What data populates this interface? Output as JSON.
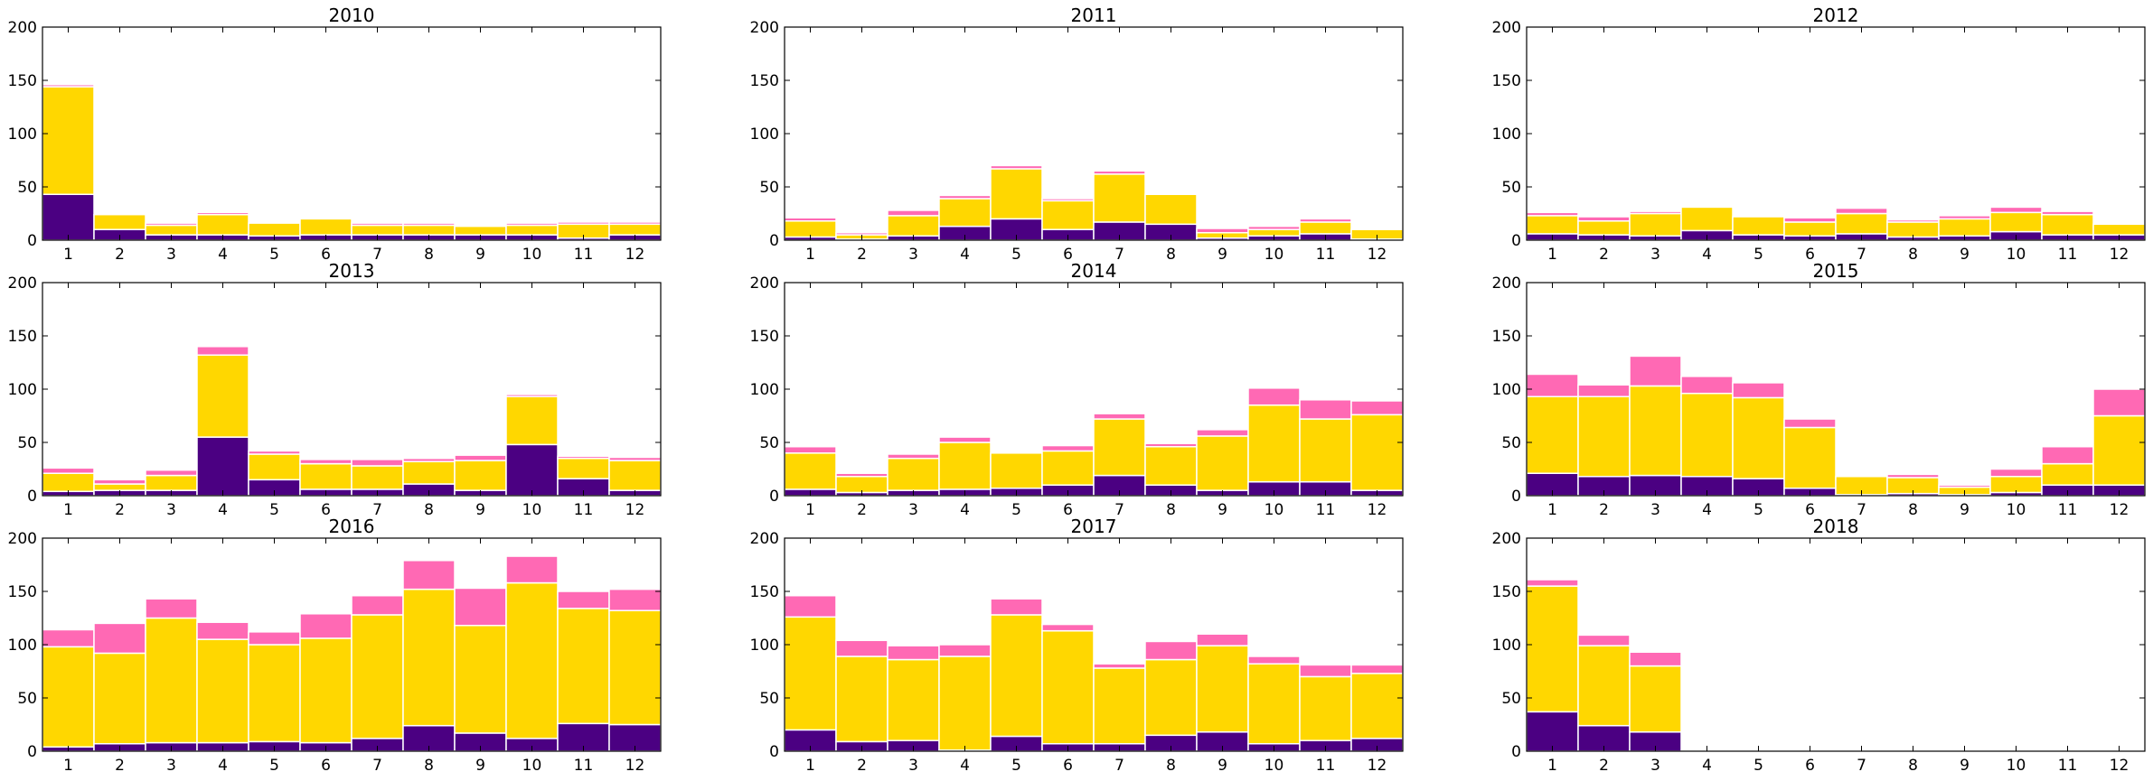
{
  "colors": {
    "bottom": "#4B0082",
    "middle": "#FFD700",
    "top": "#FF69B4",
    "edge": "#ffffff"
  },
  "chart_data": [
    {
      "type": "bar",
      "stacked": true,
      "title": "2010",
      "categories": [
        "1",
        "2",
        "3",
        "4",
        "5",
        "6",
        "7",
        "8",
        "9",
        "10",
        "11",
        "12"
      ],
      "ylim": [
        0,
        200
      ],
      "yticks": [
        0,
        50,
        100,
        150,
        200
      ],
      "series": [
        {
          "values": [
            43,
            10,
            5,
            5,
            4,
            5,
            5,
            5,
            5,
            5,
            2,
            5
          ]
        },
        {
          "values": [
            101,
            14,
            9,
            19,
            12,
            15,
            9,
            9,
            8,
            9,
            13,
            10
          ]
        },
        {
          "values": [
            2,
            0,
            2,
            2,
            0,
            0,
            2,
            2,
            0,
            2,
            2,
            2
          ]
        }
      ]
    },
    {
      "type": "bar",
      "stacked": true,
      "title": "2011",
      "categories": [
        "1",
        "2",
        "3",
        "4",
        "5",
        "6",
        "7",
        "8",
        "9",
        "10",
        "11",
        "12"
      ],
      "ylim": [
        0,
        200
      ],
      "yticks": [
        0,
        50,
        100,
        150,
        200
      ],
      "series": [
        {
          "values": [
            3,
            1,
            4,
            13,
            20,
            10,
            17,
            15,
            2,
            4,
            6,
            1
          ]
        },
        {
          "values": [
            15,
            4,
            19,
            26,
            47,
            27,
            45,
            28,
            5,
            6,
            11,
            9
          ]
        },
        {
          "values": [
            3,
            2,
            5,
            3,
            3,
            2,
            3,
            0,
            4,
            3,
            3,
            0
          ]
        }
      ]
    },
    {
      "type": "bar",
      "stacked": true,
      "title": "2012",
      "categories": [
        "1",
        "2",
        "3",
        "4",
        "5",
        "6",
        "7",
        "8",
        "9",
        "10",
        "11",
        "12"
      ],
      "ylim": [
        0,
        200
      ],
      "yticks": [
        0,
        50,
        100,
        150,
        200
      ],
      "series": [
        {
          "values": [
            6,
            5,
            4,
            9,
            5,
            4,
            6,
            3,
            4,
            8,
            5,
            5
          ]
        },
        {
          "values": [
            17,
            13,
            21,
            22,
            17,
            13,
            19,
            14,
            16,
            18,
            19,
            10
          ]
        },
        {
          "values": [
            3,
            4,
            2,
            0,
            0,
            4,
            5,
            2,
            3,
            5,
            3,
            0
          ]
        }
      ]
    },
    {
      "type": "bar",
      "stacked": true,
      "title": "2013",
      "categories": [
        "1",
        "2",
        "3",
        "4",
        "5",
        "6",
        "7",
        "8",
        "9",
        "10",
        "11",
        "12"
      ],
      "ylim": [
        0,
        200
      ],
      "yticks": [
        0,
        50,
        100,
        150,
        200
      ],
      "series": [
        {
          "values": [
            4,
            5,
            5,
            55,
            15,
            6,
            6,
            11,
            5,
            48,
            16,
            5
          ]
        },
        {
          "values": [
            17,
            6,
            14,
            77,
            24,
            24,
            22,
            21,
            28,
            45,
            19,
            28
          ]
        },
        {
          "values": [
            5,
            4,
            5,
            8,
            3,
            4,
            6,
            3,
            5,
            2,
            2,
            3
          ]
        }
      ]
    },
    {
      "type": "bar",
      "stacked": true,
      "title": "2014",
      "categories": [
        "1",
        "2",
        "3",
        "4",
        "5",
        "6",
        "7",
        "8",
        "9",
        "10",
        "11",
        "12"
      ],
      "ylim": [
        0,
        200
      ],
      "yticks": [
        0,
        50,
        100,
        150,
        200
      ],
      "series": [
        {
          "values": [
            6,
            3,
            5,
            6,
            7,
            10,
            19,
            10,
            5,
            13,
            13,
            5
          ]
        },
        {
          "values": [
            34,
            15,
            30,
            44,
            33,
            32,
            53,
            36,
            51,
            72,
            59,
            71
          ]
        },
        {
          "values": [
            6,
            3,
            4,
            5,
            0,
            5,
            5,
            3,
            6,
            16,
            18,
            13
          ]
        }
      ]
    },
    {
      "type": "bar",
      "stacked": true,
      "title": "2015",
      "categories": [
        "1",
        "2",
        "3",
        "4",
        "5",
        "6",
        "7",
        "8",
        "9",
        "10",
        "11",
        "12"
      ],
      "ylim": [
        0,
        200
      ],
      "yticks": [
        0,
        50,
        100,
        150,
        200
      ],
      "series": [
        {
          "values": [
            21,
            18,
            19,
            18,
            16,
            7,
            1,
            2,
            1,
            3,
            10,
            10
          ]
        },
        {
          "values": [
            72,
            75,
            84,
            78,
            76,
            57,
            17,
            15,
            7,
            15,
            20,
            65
          ]
        },
        {
          "values": [
            21,
            11,
            28,
            16,
            14,
            8,
            0,
            3,
            2,
            7,
            16,
            25
          ]
        }
      ]
    },
    {
      "type": "bar",
      "stacked": true,
      "title": "2016",
      "categories": [
        "1",
        "2",
        "3",
        "4",
        "5",
        "6",
        "7",
        "8",
        "9",
        "10",
        "11",
        "12"
      ],
      "ylim": [
        0,
        200
      ],
      "yticks": [
        0,
        50,
        100,
        150,
        200
      ],
      "series": [
        {
          "values": [
            4,
            7,
            8,
            8,
            9,
            8,
            12,
            24,
            17,
            12,
            26,
            25
          ]
        },
        {
          "values": [
            94,
            85,
            117,
            97,
            91,
            98,
            116,
            128,
            101,
            146,
            108,
            107
          ]
        },
        {
          "values": [
            16,
            28,
            18,
            16,
            12,
            23,
            18,
            27,
            35,
            25,
            16,
            20
          ]
        }
      ]
    },
    {
      "type": "bar",
      "stacked": true,
      "title": "2017",
      "categories": [
        "1",
        "2",
        "3",
        "4",
        "5",
        "6",
        "7",
        "8",
        "9",
        "10",
        "11",
        "12"
      ],
      "ylim": [
        0,
        200
      ],
      "yticks": [
        0,
        50,
        100,
        150,
        200
      ],
      "series": [
        {
          "values": [
            20,
            9,
            10,
            1,
            14,
            7,
            7,
            15,
            18,
            7,
            10,
            12
          ]
        },
        {
          "values": [
            106,
            80,
            76,
            88,
            114,
            106,
            71,
            71,
            81,
            75,
            60,
            61
          ]
        },
        {
          "values": [
            20,
            15,
            13,
            11,
            15,
            6,
            4,
            17,
            11,
            7,
            11,
            8
          ]
        }
      ]
    },
    {
      "type": "bar",
      "stacked": true,
      "title": "2018",
      "categories": [
        "1",
        "2",
        "3",
        "4",
        "5",
        "6",
        "7",
        "8",
        "9",
        "10",
        "11",
        "12"
      ],
      "ylim": [
        0,
        200
      ],
      "yticks": [
        0,
        50,
        100,
        150,
        200
      ],
      "series": [
        {
          "values": [
            37,
            24,
            18,
            0,
            0,
            0,
            0,
            0,
            0,
            0,
            0,
            0
          ]
        },
        {
          "values": [
            118,
            75,
            62,
            0,
            0,
            0,
            0,
            0,
            0,
            0,
            0,
            0
          ]
        },
        {
          "values": [
            6,
            10,
            13,
            0,
            0,
            0,
            0,
            0,
            0,
            0,
            0,
            0
          ]
        }
      ]
    }
  ]
}
